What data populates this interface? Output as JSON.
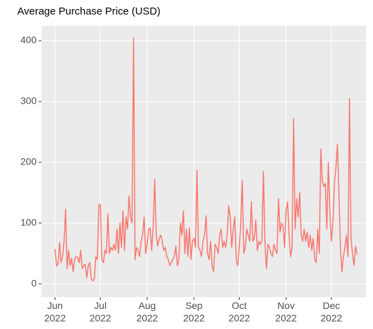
{
  "chart_data": {
    "type": "line",
    "title": "Average Purchase Price (USD)",
    "x": [
      0,
      1,
      2,
      3,
      4,
      5,
      6,
      7,
      8,
      9,
      10,
      11,
      12,
      13,
      14,
      15,
      16,
      17,
      18,
      19,
      20,
      21,
      22,
      23,
      24,
      25,
      26,
      27,
      28,
      29,
      30,
      31,
      32,
      33,
      34,
      35,
      36,
      37,
      38,
      39,
      40,
      41,
      42,
      43,
      44,
      45,
      46,
      47,
      48,
      49,
      50,
      51,
      52,
      53,
      54,
      55,
      56,
      57,
      58,
      59,
      60,
      61,
      62,
      63,
      64,
      65,
      66,
      67,
      68,
      69,
      70,
      71,
      72,
      73,
      74,
      75,
      76,
      77,
      78,
      79,
      80,
      81,
      82,
      83,
      84,
      85,
      86,
      87,
      88,
      89,
      90,
      91,
      92,
      93,
      94,
      95,
      96,
      97,
      98,
      99,
      100,
      101,
      102,
      103,
      104,
      105,
      106,
      107,
      108,
      109,
      110,
      111,
      112,
      113,
      114,
      115,
      116,
      117,
      118,
      119,
      120,
      121,
      122,
      123,
      124,
      125,
      126,
      127,
      128,
      129,
      130,
      131,
      132,
      133,
      134,
      135,
      136,
      137,
      138,
      139,
      140,
      141,
      142,
      143,
      144,
      145,
      146,
      147,
      148,
      149,
      150,
      151,
      152,
      153,
      154,
      155,
      156,
      157,
      158,
      159,
      160,
      161,
      162,
      163,
      164,
      165,
      166,
      167,
      168,
      169,
      170,
      171,
      172,
      173,
      174,
      175,
      176,
      177,
      178,
      179,
      180,
      181,
      182,
      183,
      184,
      185,
      186,
      187,
      188,
      189,
      190,
      191,
      192,
      193,
      194,
      195,
      196,
      197,
      198,
      199,
      200
    ],
    "values": [
      57,
      30,
      32,
      68,
      35,
      45,
      70,
      123,
      25,
      55,
      30,
      42,
      20,
      40,
      45,
      43,
      35,
      55,
      25,
      30,
      32,
      10,
      30,
      35,
      8,
      5,
      8,
      45,
      40,
      130,
      130,
      40,
      35,
      55,
      50,
      115,
      50,
      60,
      55,
      65,
      55,
      90,
      50,
      100,
      60,
      120,
      55,
      110,
      90,
      145,
      110,
      100,
      405,
      40,
      60,
      55,
      45,
      70,
      80,
      110,
      50,
      65,
      90,
      92,
      55,
      95,
      172,
      80,
      62,
      75,
      80,
      70,
      55,
      60,
      45,
      40,
      30,
      35,
      40,
      45,
      62,
      30,
      40,
      100,
      80,
      120,
      50,
      90,
      45,
      92,
      40,
      70,
      75,
      60,
      187,
      60,
      55,
      45,
      70,
      80,
      112,
      50,
      40,
      70,
      30,
      20,
      65,
      60,
      50,
      80,
      90,
      60,
      70,
      60,
      80,
      128,
      110,
      60,
      90,
      110,
      40,
      30,
      60,
      100,
      170,
      50,
      60,
      90,
      80,
      70,
      135,
      70,
      75,
      105,
      55,
      70,
      65,
      70,
      185,
      70,
      25,
      65,
      60,
      50,
      45,
      65,
      55,
      50,
      140,
      85,
      100,
      95,
      60,
      120,
      135,
      80,
      45,
      60,
      272,
      90,
      140,
      110,
      150,
      80,
      70,
      90,
      70,
      85,
      60,
      80,
      55,
      75,
      40,
      35,
      90,
      50,
      222,
      170,
      160,
      165,
      90,
      200,
      120,
      70,
      100,
      165,
      190,
      230,
      150,
      60,
      20,
      45,
      60,
      80,
      45,
      305,
      75,
      50,
      30,
      62,
      48
    ],
    "color": "#f8766d",
    "xlim": [
      -9,
      206
    ],
    "xticks": [
      {
        "value": 0,
        "label": "Jun\n2022"
      },
      {
        "value": 30,
        "label": "Jul\n2022"
      },
      {
        "value": 61,
        "label": "Aug\n2022"
      },
      {
        "value": 92,
        "label": "Sep\n2022"
      },
      {
        "value": 122,
        "label": "Oct\n2022"
      },
      {
        "value": 153,
        "label": "Nov\n2022"
      },
      {
        "value": 183,
        "label": "Dec\n2022"
      }
    ],
    "ylim": [
      -22,
      425
    ],
    "yticks": [
      0,
      100,
      200,
      300,
      400
    ],
    "grid": true
  }
}
